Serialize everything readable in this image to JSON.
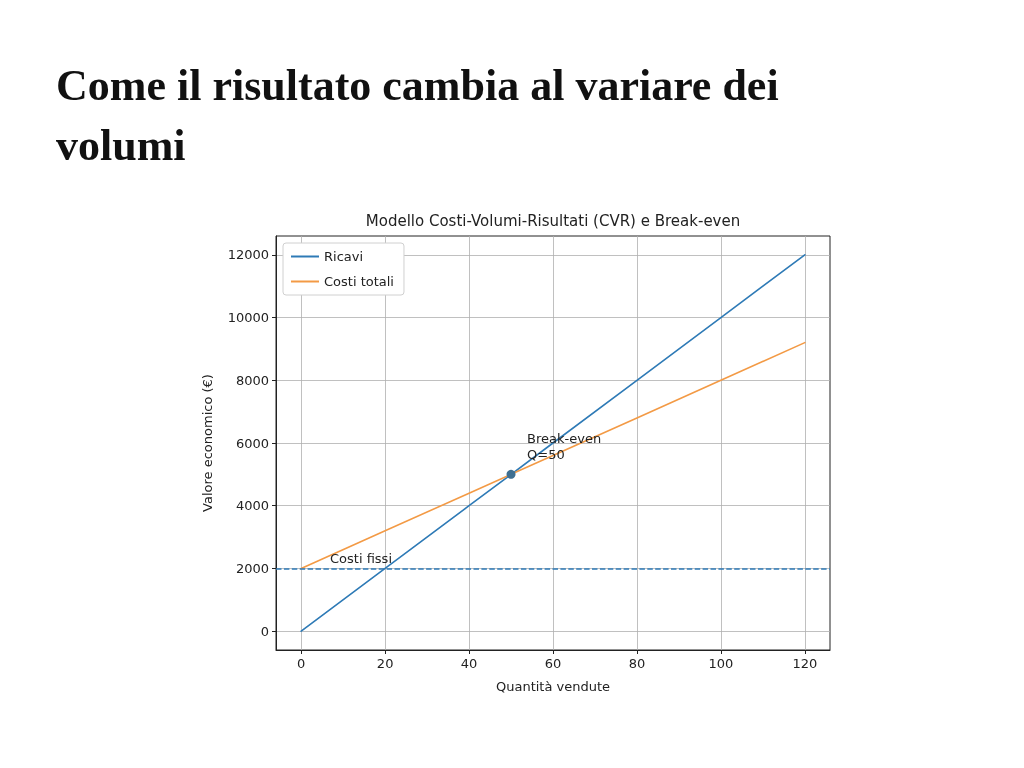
{
  "chart_data": {
    "type": "line",
    "title": "Come il risultato cambia al variare dei volumi",
    "subtitle": "Modello Costi-Volumi-Risultati (CVR) e Break-even",
    "xlabel": "Quantità vendute",
    "ylabel": "Valore economico (€)",
    "x": [
      0,
      20,
      40,
      60,
      80,
      100,
      120
    ],
    "series": [
      {
        "name": "Ricavi",
        "color": "#2e7ab6",
        "values": [
          0,
          2000,
          4000,
          6000,
          8000,
          10000,
          12000
        ]
      },
      {
        "name": "Costi totali",
        "color": "#f39a45",
        "values": [
          2000,
          3200,
          4400,
          5600,
          6800,
          8000,
          9200
        ]
      },
      {
        "type": "scatter",
        "color": "#3f6f91",
        "x": [
          50
        ],
        "values": [
          5000
        ]
      }
    ],
    "xlim": [
      -6,
      126
    ],
    "ylim": [
      -600,
      12600
    ],
    "xticks": [
      0,
      20,
      40,
      60,
      80,
      100,
      120
    ],
    "yticks": [
      0,
      2000,
      4000,
      6000,
      8000,
      10000,
      12000
    ],
    "grid": true,
    "legend": "top left",
    "ref_lines": [
      {
        "axis": "y",
        "value": 2000,
        "label": "Costi fissi",
        "color": "#2e7ab6",
        "line_style": "dashed"
      }
    ],
    "annotations": [
      {
        "text": "Break-even\nQ=50",
        "x": 50,
        "y": 5000
      }
    ]
  }
}
